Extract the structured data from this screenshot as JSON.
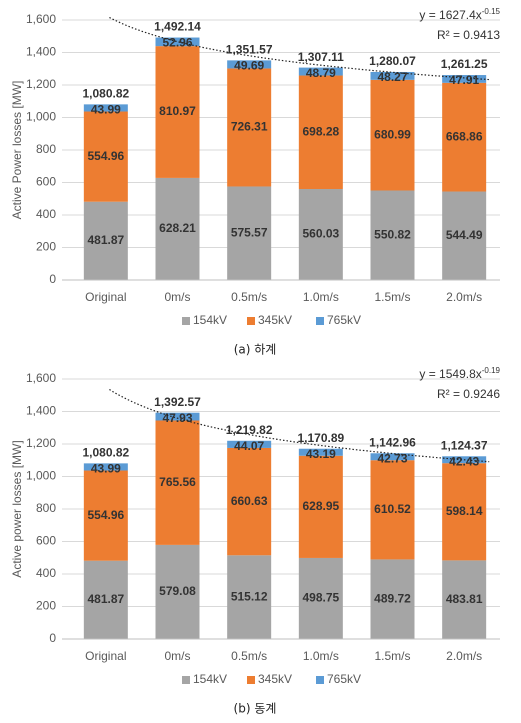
{
  "chart_data": [
    {
      "type": "bar",
      "stacked": true,
      "caption": "(a) 하계",
      "y_label": "Active Power losses [MW]",
      "categories": [
        "Original",
        "0m/s",
        "0.5m/s",
        "1.0m/s",
        "1.5m/s",
        "2.0m/s"
      ],
      "series": [
        {
          "name": "154kV",
          "color": "#a5a5a5",
          "values": [
            481.87,
            628.21,
            575.57,
            560.03,
            550.82,
            544.49
          ]
        },
        {
          "name": "345kV",
          "color": "#ed7d31",
          "values": [
            554.96,
            810.97,
            726.31,
            698.28,
            680.99,
            668.86
          ]
        },
        {
          "name": "765kV",
          "color": "#5b9bd5",
          "values": [
            43.99,
            52.96,
            49.69,
            48.79,
            48.27,
            47.91
          ]
        }
      ],
      "totals": {
        "values": [
          1080.82,
          1492.14,
          1351.57,
          1307.11,
          1280.07,
          1261.25
        ],
        "value_labels": [
          "1,080.82",
          "1,492.14",
          "1,351.57",
          "1,307.11",
          "1,280.07",
          "1,261.25"
        ]
      },
      "ylim": [
        0,
        1600
      ],
      "yticks": [
        0,
        200,
        400,
        600,
        800,
        {
          "value": 1000,
          "label": "1,000"
        },
        {
          "value": 1200,
          "label": "1,200"
        },
        {
          "value": 1400,
          "label": "1,400"
        },
        {
          "value": 1600,
          "label": "1,600"
        }
      ],
      "grid": true,
      "legend": "bottom",
      "trendline": {
        "coefficient": 1627.4,
        "exponent": -0.15,
        "label": "y = 1627.4x",
        "exponent_label": "-0.15",
        "r_squared_label": "R² = 0.9413"
      }
    },
    {
      "type": "bar",
      "stacked": true,
      "caption": "(b) 동계",
      "y_label": "Active power losses [MW]",
      "categories": [
        "Original",
        "0m/s",
        "0.5m/s",
        "1.0m/s",
        "1.5m/s",
        "2.0m/s"
      ],
      "series": [
        {
          "name": "154kV",
          "color": "#a5a5a5",
          "values": [
            481.87,
            579.08,
            515.12,
            498.75,
            489.72,
            483.81
          ]
        },
        {
          "name": "345kV",
          "color": "#ed7d31",
          "values": [
            554.96,
            765.56,
            660.63,
            628.95,
            610.52,
            598.14
          ]
        },
        {
          "name": "765kV",
          "color": "#5b9bd5",
          "values": [
            43.99,
            47.93,
            44.07,
            43.19,
            42.73,
            42.43
          ]
        }
      ],
      "totals": {
        "values": [
          1080.82,
          1392.57,
          1219.82,
          1170.89,
          1142.96,
          1124.37
        ],
        "value_labels": [
          "1,080.82",
          "1,392.57",
          "1,219.82",
          "1,170.89",
          "1,142.96",
          "1,124.37"
        ]
      },
      "ylim": [
        0,
        1600
      ],
      "yticks": [
        0,
        200,
        400,
        600,
        800,
        {
          "value": 1000,
          "label": "1,000"
        },
        {
          "value": 1200,
          "label": "1,200"
        },
        {
          "value": 1400,
          "label": "1,400"
        },
        {
          "value": 1600,
          "label": "1,600"
        }
      ],
      "grid": true,
      "legend": "bottom",
      "trendline": {
        "coefficient": 1549.8,
        "exponent": -0.19,
        "label": "y = 1549.8x",
        "exponent_label": "-0.19",
        "r_squared_label": "R² = 0.9246"
      }
    }
  ]
}
